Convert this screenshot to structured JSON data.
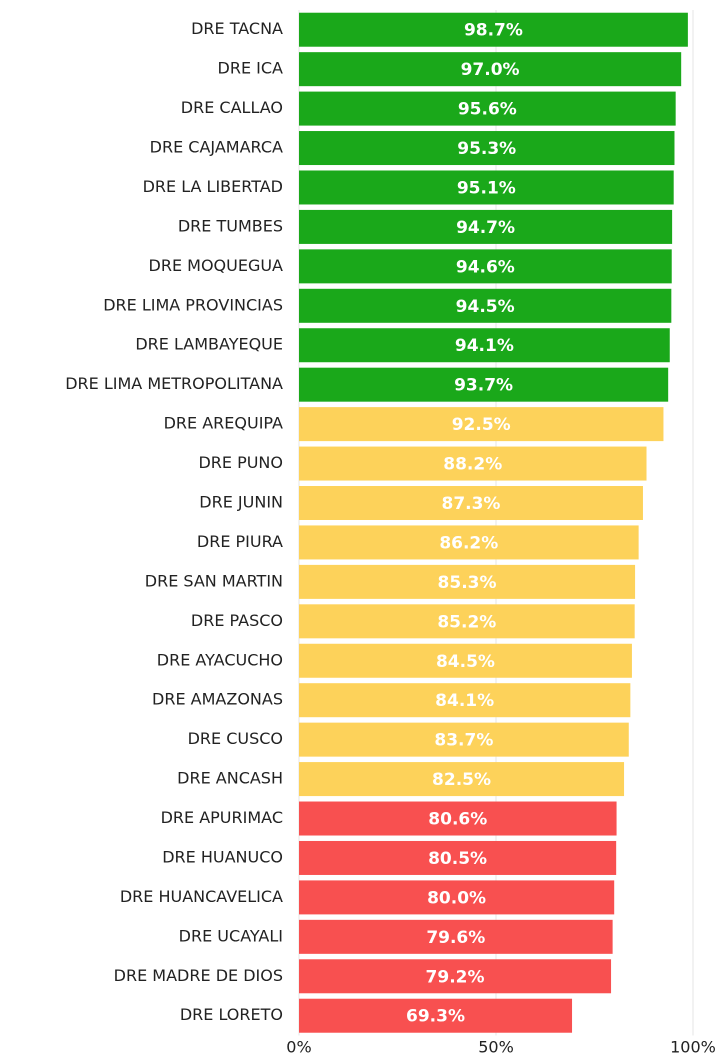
{
  "chart_data": {
    "type": "bar",
    "orientation": "horizontal",
    "categories": [
      "DRE TACNA",
      "DRE ICA",
      "DRE CALLAO",
      "DRE CAJAMARCA",
      "DRE LA LIBERTAD",
      "DRE TUMBES",
      "DRE MOQUEGUA",
      "DRE LIMA PROVINCIAS",
      "DRE LAMBAYEQUE",
      "DRE LIMA METROPOLITANA",
      "DRE AREQUIPA",
      "DRE PUNO",
      "DRE JUNIN",
      "DRE PIURA",
      "DRE SAN MARTIN",
      "DRE PASCO",
      "DRE AYACUCHO",
      "DRE AMAZONAS",
      "DRE CUSCO",
      "DRE ANCASH",
      "DRE APURIMAC",
      "DRE HUANUCO",
      "DRE HUANCAVELICA",
      "DRE UCAYALI",
      "DRE MADRE DE DIOS",
      "DRE LORETO"
    ],
    "values": [
      98.7,
      97.0,
      95.6,
      95.3,
      95.1,
      94.7,
      94.6,
      94.5,
      94.1,
      93.7,
      92.5,
      88.2,
      87.3,
      86.2,
      85.3,
      85.2,
      84.5,
      84.1,
      83.7,
      82.5,
      80.6,
      80.5,
      80.0,
      79.6,
      79.2,
      69.3
    ],
    "value_labels": [
      "98.7%",
      "97.0%",
      "95.6%",
      "95.3%",
      "95.1%",
      "94.7%",
      "94.6%",
      "94.5%",
      "94.1%",
      "93.7%",
      "92.5%",
      "88.2%",
      "87.3%",
      "86.2%",
      "85.3%",
      "85.2%",
      "84.5%",
      "84.1%",
      "83.7%",
      "82.5%",
      "80.6%",
      "80.5%",
      "80.0%",
      "79.6%",
      "79.2%",
      "69.3%"
    ],
    "colors": [
      "#1aa81a",
      "#1aa81a",
      "#1aa81a",
      "#1aa81a",
      "#1aa81a",
      "#1aa81a",
      "#1aa81a",
      "#1aa81a",
      "#1aa81a",
      "#1aa81a",
      "#fdd25a",
      "#fdd25a",
      "#fdd25a",
      "#fdd25a",
      "#fdd25a",
      "#fdd25a",
      "#fdd25a",
      "#fdd25a",
      "#fdd25a",
      "#fdd25a",
      "#f85050",
      "#f85050",
      "#f85050",
      "#f85050",
      "#f85050",
      "#f85050"
    ],
    "xlim": [
      0,
      100
    ],
    "xticks": [
      {
        "value": 0,
        "label": "0%"
      },
      {
        "value": 50,
        "label": "50%"
      },
      {
        "value": 100,
        "label": "100%"
      }
    ],
    "grid": true
  }
}
